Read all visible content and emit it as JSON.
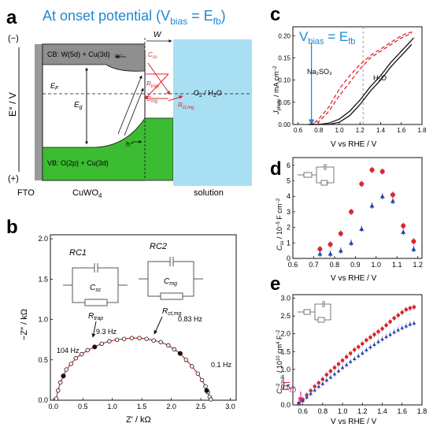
{
  "panels": {
    "a": {
      "letter": "a",
      "title": "At onset potential (V",
      "title_sub": "bias",
      "title_mid": " = E",
      "title_sub2": "fb",
      "title_end": ")",
      "axis_label": "E° / V",
      "minus_label": "(−)",
      "plus_label": "(+)",
      "cb_label": "CB: W(5d) + Cu(3d)",
      "vb_label": "VB: O(2p) + Cu(3d)",
      "w_label": "W",
      "ef_label": "E",
      "ef_sub": "F",
      "eg_label": "E",
      "eg_sub": "g",
      "electron": "e⁻",
      "hole": "h⁺",
      "redox": "O",
      "redox_sub": "2",
      "redox_end": " / H",
      "redox_sub2": "2",
      "redox_end2": "O",
      "css": "C",
      "css_sub": "ss",
      "rtrap": "R",
      "rtrap_sub": "trap",
      "cmg": "C",
      "cmg_sub": "mg",
      "rct": "R",
      "rct_sub": "ct,mg",
      "bottom_labels": [
        "FTO",
        "CuWO",
        "solution"
      ],
      "cuwo_sub": "4",
      "colors": {
        "cb": "#8f8f8f",
        "vb": "#3cbc32",
        "solution": "#a9dff2",
        "arrow": "#e0242c",
        "title": "#1e88d2"
      }
    },
    "c": {
      "letter": "c",
      "vbias_label": "V",
      "vbias_sub": "bias",
      "vbias_mid": " = E",
      "vbias_sub2": "fb",
      "ylabel": "J",
      "ylabel_sub": "photo",
      "ylabel_end": " / mA cm",
      "ylabel_sup": "−2",
      "xlabel": "V vs RHE / V",
      "series_labels": [
        "Na₂SO₃",
        "H₂O"
      ],
      "chart_data": {
        "type": "line",
        "x_ticks": [
          "0.6",
          "0.8",
          "1.0",
          "1.2",
          "1.4",
          "1.6",
          "1.8"
        ],
        "y_ticks": [
          "0.00",
          "0.05",
          "0.10",
          "0.15",
          "0.20"
        ],
        "xlim": [
          0.55,
          1.8
        ],
        "ylim": [
          0,
          0.22
        ],
        "series": [
          {
            "name": "Na₂SO₃",
            "style": "dashed",
            "color": "#e0242c",
            "x": [
              0.7,
              0.75,
              0.8,
              0.9,
              1.0,
              1.1,
              1.2,
              1.3,
              1.4,
              1.5,
              1.6,
              1.65,
              1.7,
              1.72
            ],
            "y": [
              0.0,
              0.003,
              0.012,
              0.04,
              0.08,
              0.11,
              0.135,
              0.155,
              0.17,
              0.185,
              0.2,
              0.205,
              0.208,
              0.21
            ]
          },
          {
            "name": "Na₂SO₃",
            "style": "dashed",
            "color": "#e0242c",
            "x": [
              0.72,
              0.8,
              0.9,
              1.0,
              1.1,
              1.2,
              1.3,
              1.4,
              1.5,
              1.6,
              1.7
            ],
            "y": [
              0.0,
              0.006,
              0.03,
              0.065,
              0.095,
              0.125,
              0.15,
              0.165,
              0.18,
              0.195,
              0.205
            ]
          },
          {
            "name": "H₂O",
            "style": "solid",
            "color": "#111111",
            "x": [
              0.7,
              0.8,
              0.9,
              1.0,
              1.1,
              1.2,
              1.3,
              1.4,
              1.5,
              1.6,
              1.7,
              1.72
            ],
            "y": [
              0.0,
              0.0,
              0.003,
              0.012,
              0.03,
              0.055,
              0.085,
              0.11,
              0.14,
              0.165,
              0.19,
              0.195
            ]
          },
          {
            "name": "H₂O",
            "style": "solid",
            "color": "#111111",
            "x": [
              0.72,
              0.9,
              1.0,
              1.1,
              1.2,
              1.3,
              1.4,
              1.5,
              1.6,
              1.7
            ],
            "y": [
              0.0,
              0.0,
              0.005,
              0.02,
              0.045,
              0.075,
              0.1,
              0.13,
              0.155,
              0.18
            ]
          }
        ],
        "vlines": [
          0.73,
          1.23
        ]
      }
    },
    "b": {
      "letter": "b",
      "rc1": "RC1",
      "rc2": "RC2",
      "csc": "C",
      "csc_sub": "sc",
      "cmg": "C",
      "cmg_sub": "mg",
      "rtrap": "R",
      "rtrap_sub": "trap",
      "rct": "R",
      "rct_sub": "ct,mg",
      "freq_labels": [
        "104 Hz",
        "9.3 Hz",
        "0.83 Hz",
        "0.1 Hz"
      ],
      "ylabel": "−Z″ / kΩ",
      "xlabel": "Z′ / kΩ",
      "chart_data": {
        "type": "scatter",
        "x_ticks": [
          "0.0",
          "0.5",
          "1.0",
          "1.5",
          "2.0",
          "2.5",
          "3.0"
        ],
        "y_ticks": [
          "0.0",
          "0.5",
          "1.0",
          "1.5",
          "2.0"
        ],
        "xlim": [
          -0.05,
          3.1
        ],
        "ylim": [
          0,
          2.05
        ],
        "points_x": [
          0.05,
          0.08,
          0.12,
          0.17,
          0.22,
          0.3,
          0.38,
          0.48,
          0.58,
          0.7,
          0.82,
          0.95,
          1.08,
          1.2,
          1.33,
          1.46,
          1.58,
          1.7,
          1.82,
          1.95,
          2.05,
          2.15,
          2.25,
          2.35,
          2.45,
          2.52,
          2.58,
          2.62,
          2.65,
          2.67
        ],
        "points_y": [
          0.02,
          0.12,
          0.22,
          0.3,
          0.38,
          0.45,
          0.52,
          0.57,
          0.62,
          0.66,
          0.7,
          0.73,
          0.75,
          0.76,
          0.77,
          0.77,
          0.76,
          0.74,
          0.72,
          0.68,
          0.63,
          0.58,
          0.5,
          0.42,
          0.33,
          0.25,
          0.17,
          0.1,
          0.04,
          0.01
        ],
        "filled_x": [
          0.17,
          0.7,
          2.15,
          2.6
        ],
        "filled_y": [
          0.3,
          0.66,
          0.58,
          0.12
        ],
        "fit_color": "#e0242c"
      }
    },
    "d": {
      "letter": "d",
      "ylabel": "C",
      "ylabel_sub": "ss",
      "ylabel_end": " / 10",
      "ylabel_sup": "−5",
      "ylabel_end2": " F cm",
      "ylabel_sup2": "−2",
      "xlabel": "V vs RHE / V",
      "chart_data": {
        "type": "scatter",
        "x_ticks": [
          "0.6",
          "0.7",
          "0.8",
          "0.9",
          "1.0",
          "1.1",
          "1.2"
        ],
        "y_ticks": [
          "0",
          "1",
          "2",
          "3",
          "4",
          "5",
          "6"
        ],
        "xlim": [
          0.6,
          1.22
        ],
        "ylim": [
          0,
          6.5
        ],
        "series": [
          {
            "name": "",
            "marker": "circle",
            "color": "#e0242c",
            "x": [
              0.73,
              0.78,
              0.83,
              0.88,
              0.93,
              0.98,
              1.03,
              1.08,
              1.13,
              1.18
            ],
            "y": [
              0.6,
              0.9,
              1.6,
              3.0,
              4.8,
              5.7,
              5.6,
              4.1,
              2.1,
              1.1
            ]
          },
          {
            "name": "",
            "marker": "triangle",
            "color": "#2140b8",
            "x": [
              0.73,
              0.78,
              0.83,
              0.88,
              0.93,
              0.98,
              1.03,
              1.08,
              1.13,
              1.18
            ],
            "y": [
              0.3,
              0.3,
              0.5,
              1.0,
              1.9,
              3.4,
              4.0,
              3.7,
              1.7,
              0.6
            ]
          }
        ]
      }
    },
    "e": {
      "letter": "e",
      "ylabel": "C",
      "ylabel_sup": "−2",
      "ylabel_sub": "bulk",
      "ylabel_end": " / 10",
      "ylabel_sup2": "10",
      "ylabel_end2": " cm",
      "ylabel_sup3": "4",
      "ylabel_end3": " F",
      "ylabel_sup4": "−2",
      "efb_label": "E",
      "efb_sub": "fb",
      "xlabel": "V vs RHE / V",
      "chart_data": {
        "type": "scatter",
        "x_ticks": [
          "0.6",
          "0.8",
          "1.0",
          "1.2",
          "1.4",
          "1.6",
          "1.8"
        ],
        "y_ticks": [
          "0.0",
          "0.5",
          "1.0",
          "1.5",
          "2.0",
          "2.5",
          "3.0"
        ],
        "xlim": [
          0.5,
          1.8
        ],
        "ylim": [
          0,
          3.1
        ],
        "series": [
          {
            "name": "",
            "marker": "circle",
            "color": "#e0242c",
            "x": [
              0.56,
              0.6,
              0.64,
              0.68,
              0.72,
              0.76,
              0.8,
              0.84,
              0.88,
              0.92,
              0.96,
              1.0,
              1.04,
              1.08,
              1.12,
              1.16,
              1.2,
              1.24,
              1.28,
              1.32,
              1.36,
              1.4,
              1.44,
              1.48,
              1.52,
              1.56,
              1.6,
              1.64,
              1.68,
              1.72
            ],
            "y": [
              0.05,
              0.15,
              0.28,
              0.4,
              0.52,
              0.62,
              0.72,
              0.85,
              0.95,
              1.05,
              1.15,
              1.25,
              1.35,
              1.45,
              1.55,
              1.63,
              1.72,
              1.82,
              1.9,
              1.98,
              2.06,
              2.14,
              2.24,
              2.34,
              2.44,
              2.52,
              2.6,
              2.68,
              2.72,
              2.75
            ]
          },
          {
            "name": "",
            "marker": "triangle",
            "color": "#2140b8",
            "x": [
              0.56,
              0.6,
              0.64,
              0.68,
              0.72,
              0.76,
              0.8,
              0.84,
              0.88,
              0.92,
              0.96,
              1.0,
              1.04,
              1.08,
              1.12,
              1.16,
              1.2,
              1.24,
              1.28,
              1.32,
              1.36,
              1.4,
              1.44,
              1.48,
              1.52,
              1.56,
              1.6,
              1.64,
              1.68,
              1.72
            ],
            "y": [
              0.05,
              0.12,
              0.22,
              0.32,
              0.42,
              0.52,
              0.6,
              0.7,
              0.78,
              0.87,
              0.96,
              1.05,
              1.13,
              1.22,
              1.3,
              1.38,
              1.46,
              1.55,
              1.63,
              1.7,
              1.78,
              1.85,
              1.92,
              1.98,
              2.05,
              2.11,
              2.17,
              2.22,
              2.27,
              2.3
            ]
          }
        ]
      }
    }
  }
}
